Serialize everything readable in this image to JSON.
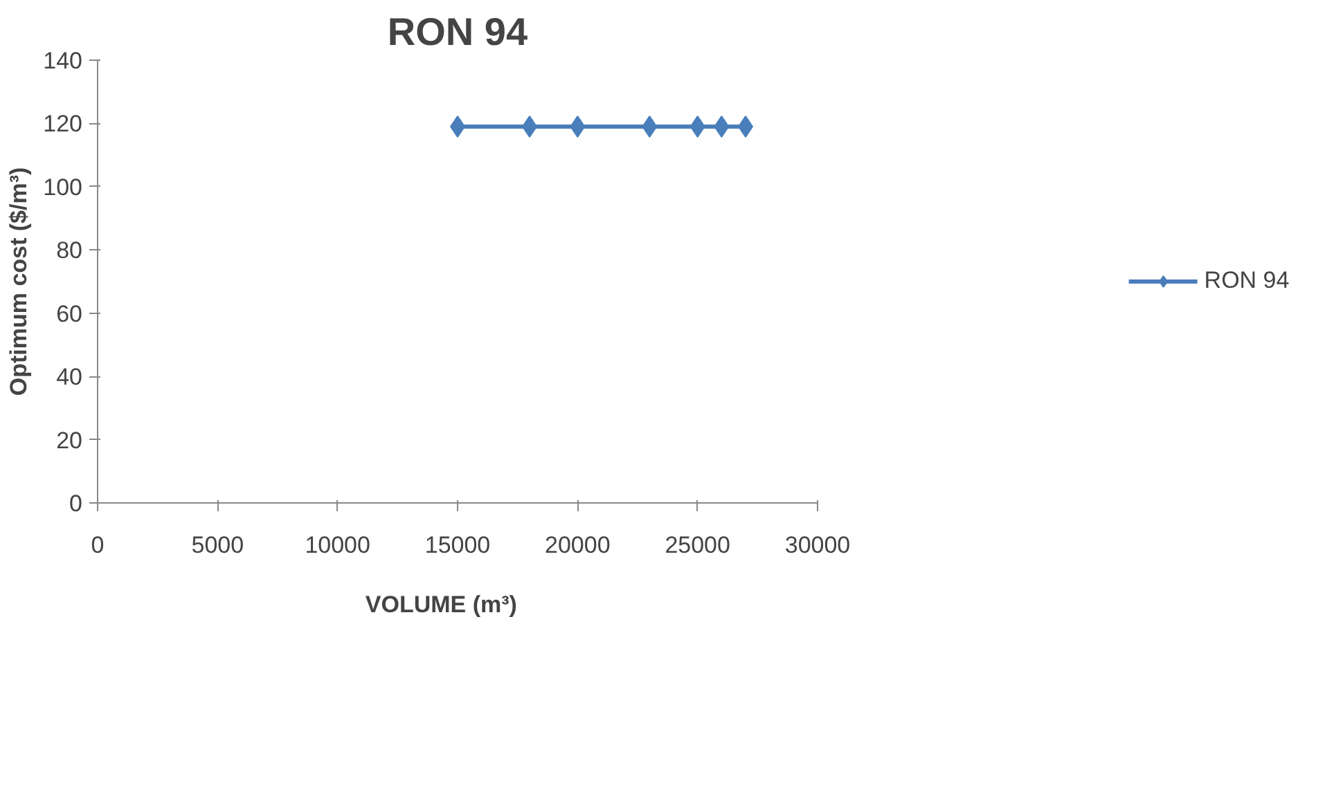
{
  "chart_data": {
    "type": "line",
    "title": "RON 94",
    "xlabel": "VOLUME      (m³)",
    "ylabel": "Optimum cost ($/m³)",
    "x": [
      15000,
      18000,
      20000,
      23000,
      25000,
      26000,
      27000
    ],
    "series": [
      {
        "name": "RON 94",
        "color": "#4a7ebb",
        "values": [
          119,
          119,
          119,
          119,
          119,
          119,
          119
        ]
      }
    ],
    "xlim": [
      0,
      30000
    ],
    "xticks": [
      0,
      5000,
      10000,
      15000,
      20000,
      25000,
      30000
    ],
    "ylim": [
      0,
      140
    ],
    "yticks": [
      0,
      20,
      40,
      60,
      80,
      100,
      120,
      140
    ],
    "grid": false,
    "legend": "right",
    "marker": "diamond",
    "line_style": "solid"
  }
}
